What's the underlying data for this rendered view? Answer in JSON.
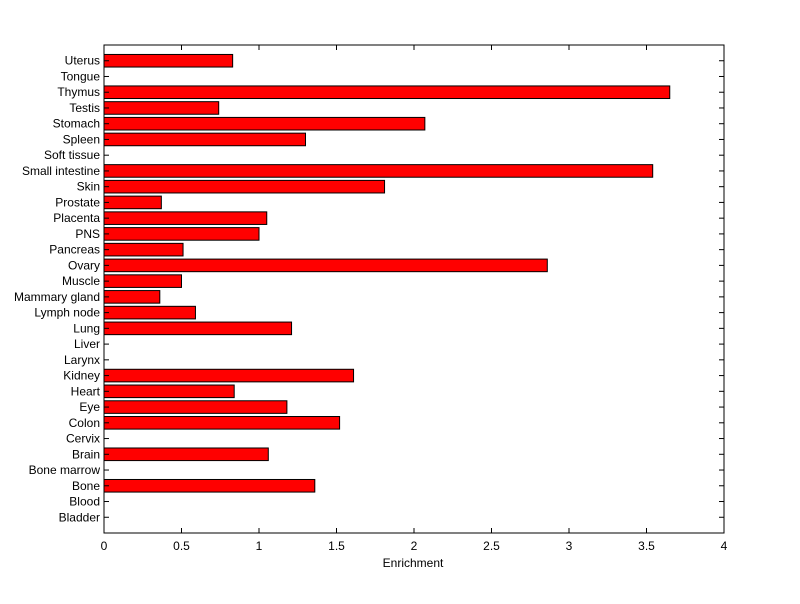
{
  "chart_data": {
    "type": "bar",
    "orientation": "horizontal",
    "categories": [
      "Bladder",
      "Blood",
      "Bone",
      "Bone marrow",
      "Brain",
      "Cervix",
      "Colon",
      "Eye",
      "Heart",
      "Kidney",
      "Larynx",
      "Liver",
      "Lung",
      "Lymph node",
      "Mammary gland",
      "Muscle",
      "Ovary",
      "Pancreas",
      "PNS",
      "Placenta",
      "Prostate",
      "Skin",
      "Small intestine",
      "Soft tissue",
      "Spleen",
      "Stomach",
      "Testis",
      "Thymus",
      "Tongue",
      "Uterus"
    ],
    "values": [
      0,
      0,
      1.36,
      0,
      1.06,
      0,
      1.52,
      1.18,
      0.84,
      1.61,
      0,
      0,
      1.21,
      0.59,
      0.36,
      0.5,
      2.86,
      0.51,
      1.0,
      1.05,
      0.37,
      1.81,
      3.54,
      0,
      1.3,
      2.07,
      0.74,
      3.65,
      0,
      0.83
    ],
    "xlabel": "Enrichment",
    "ylabel": "",
    "title": "",
    "xlim": [
      0,
      4
    ],
    "xticks": [
      "0",
      "0.5",
      "1",
      "1.5",
      "2",
      "2.5",
      "3",
      "3.5",
      "4"
    ],
    "bar_color": "#ff0000",
    "bar_edge_color": "#000000",
    "grid": false,
    "legend": "none"
  }
}
